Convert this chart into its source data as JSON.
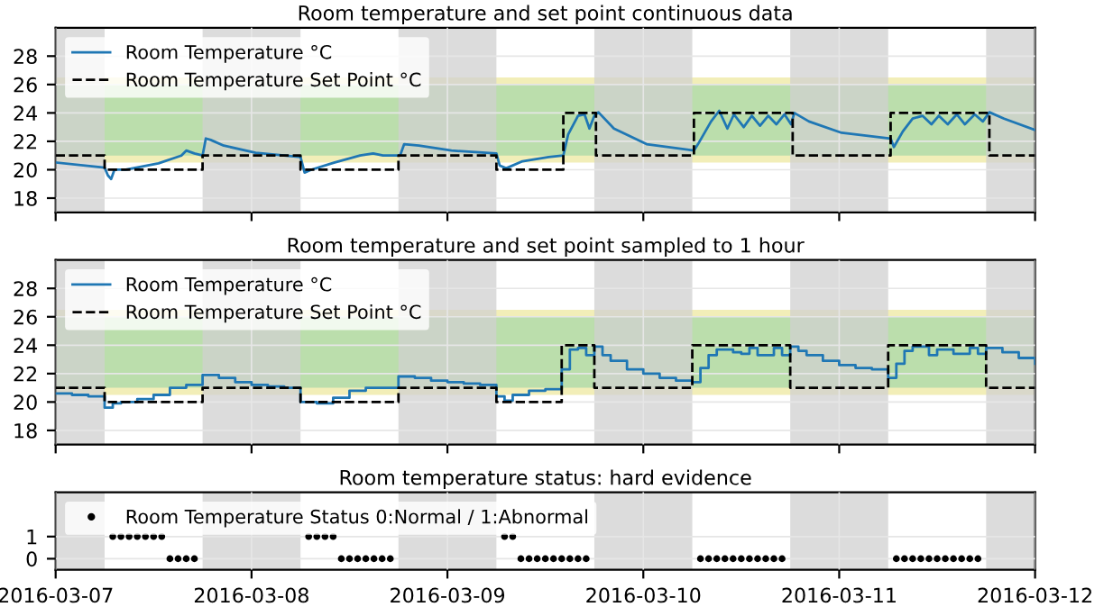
{
  "chart_data": [
    {
      "type": "line",
      "title": "Room temperature and set point continuous data",
      "tick_labels": "y",
      "grid": true,
      "legend": "top left",
      "xlim": [
        "2016-03-07",
        "2016-03-12"
      ],
      "xticks": [
        "2016-03-07",
        "2016-03-08",
        "2016-03-09",
        "2016-03-10",
        "2016-03-11",
        "2016-03-12"
      ],
      "ylim": [
        17,
        30
      ],
      "yticks": [
        18,
        20,
        22,
        24,
        26,
        28
      ],
      "bands": [
        {
          "axis": "y",
          "from": 20.5,
          "to": 26.5,
          "color": "#eee8a0"
        },
        {
          "axis": "y",
          "from": 21,
          "to": 26,
          "color": "#a8d8a8"
        },
        {
          "axis": "x",
          "from": "2016-03-07T00:00",
          "to": "2016-03-07T06:00",
          "color": "#d0d0d0"
        },
        {
          "axis": "x",
          "from": "2016-03-07T18:00",
          "to": "2016-03-08T06:00",
          "color": "#d0d0d0"
        },
        {
          "axis": "x",
          "from": "2016-03-08T18:00",
          "to": "2016-03-09T06:00",
          "color": "#d0d0d0"
        },
        {
          "axis": "x",
          "from": "2016-03-09T18:00",
          "to": "2016-03-10T06:00",
          "color": "#d0d0d0"
        },
        {
          "axis": "x",
          "from": "2016-03-10T18:00",
          "to": "2016-03-11T06:00",
          "color": "#d0d0d0"
        },
        {
          "axis": "x",
          "from": "2016-03-11T18:00",
          "to": "2016-03-12T00:00",
          "color": "#d0d0d0"
        }
      ],
      "series": [
        {
          "name": "Room Temperature °C",
          "type": "line",
          "color": "#1f77b4",
          "line_style": "solid",
          "x": [
            "2016-03-07T00:10",
            "2016-03-07T06:00",
            "2016-03-07T06:24",
            "2016-03-07T06:48",
            "2016-03-07T07:12",
            "2016-03-07T08:36",
            "2016-03-07T12:36",
            "2016-03-07T15:24",
            "2016-03-07T16:00",
            "2016-03-07T17:00",
            "2016-03-07T18:00",
            "2016-03-07T18:24",
            "2016-03-07T19:00",
            "2016-03-07T20:36",
            "2016-03-08T00:30",
            "2016-03-08T06:00",
            "2016-03-08T06:30",
            "2016-03-08T07:18",
            "2016-03-08T10:06",
            "2016-03-08T13:18",
            "2016-03-08T14:54",
            "2016-03-08T16:06",
            "2016-03-08T18:12",
            "2016-03-08T18:42",
            "2016-03-08T20:30",
            "2016-03-09T00:30",
            "2016-03-09T06:00",
            "2016-03-09T06:24",
            "2016-03-09T07:12",
            "2016-03-09T09:12",
            "2016-03-09T12:24",
            "2016-03-09T14:12",
            "2016-03-09T14:48",
            "2016-03-09T16:00",
            "2016-03-09T16:48",
            "2016-03-09T17:24",
            "2016-03-09T18:00",
            "2016-03-09T18:30",
            "2016-03-09T20:24",
            "2016-03-10T00:24",
            "2016-03-10T06:12",
            "2016-03-10T06:42",
            "2016-03-10T08:18",
            "2016-03-10T09:18",
            "2016-03-10T10:18",
            "2016-03-10T11:06",
            "2016-03-10T12:18",
            "2016-03-10T13:18",
            "2016-03-10T14:18",
            "2016-03-10T15:18",
            "2016-03-10T16:18",
            "2016-03-10T17:18",
            "2016-03-10T18:06",
            "2016-03-10T18:30",
            "2016-03-10T20:18",
            "2016-03-11T00:18",
            "2016-03-11T06:18",
            "2016-03-11T06:42",
            "2016-03-11T07:48",
            "2016-03-11T09:00",
            "2016-03-11T10:12",
            "2016-03-11T11:18",
            "2016-03-11T12:12",
            "2016-03-11T13:18",
            "2016-03-11T14:24",
            "2016-03-11T15:24",
            "2016-03-11T16:36",
            "2016-03-11T17:36",
            "2016-03-11T18:24",
            "2016-03-11T20:12",
            "2016-03-12T00:00"
          ],
          "values": [
            20.5,
            20.15,
            19.6,
            19.35,
            20.0,
            20.0,
            20.45,
            21.0,
            21.35,
            21.15,
            21.0,
            22.2,
            22.1,
            21.7,
            21.2,
            20.9,
            19.8,
            20.0,
            20.5,
            21.0,
            21.15,
            21.0,
            21.0,
            21.8,
            21.7,
            21.35,
            21.15,
            20.3,
            20.1,
            20.6,
            20.9,
            21.0,
            22.5,
            23.8,
            23.9,
            22.9,
            23.8,
            24.05,
            22.9,
            21.8,
            21.35,
            21.8,
            23.4,
            24.15,
            22.9,
            23.9,
            23.0,
            23.8,
            23.1,
            23.8,
            23.2,
            23.9,
            23.2,
            24.0,
            23.4,
            22.6,
            22.2,
            21.6,
            22.7,
            23.6,
            23.8,
            23.2,
            23.8,
            23.2,
            23.9,
            23.2,
            23.9,
            23.4,
            24.05,
            23.6,
            22.8
          ]
        },
        {
          "name": "Room Temperature Set Point °C",
          "type": "step",
          "color": "#000000",
          "line_style": "dashed",
          "x": [
            "2016-03-07T00:00",
            "2016-03-07T06:00",
            "2016-03-07T18:00",
            "2016-03-08T06:00",
            "2016-03-08T18:00",
            "2016-03-09T06:00",
            "2016-03-09T14:12",
            "2016-03-09T18:12",
            "2016-03-10T06:12",
            "2016-03-10T18:18",
            "2016-03-11T06:18",
            "2016-03-11T18:24",
            "2016-03-12T00:00"
          ],
          "values": [
            21,
            20,
            21,
            20,
            21,
            20,
            24,
            21,
            24,
            21,
            24,
            21,
            21
          ]
        }
      ]
    },
    {
      "type": "line",
      "title": "Room temperature and set point sampled to 1 hour",
      "tick_labels": "y",
      "grid": true,
      "legend": "top left",
      "xlim": [
        "2016-03-07",
        "2016-03-12"
      ],
      "xticks": [
        "2016-03-07",
        "2016-03-08",
        "2016-03-09",
        "2016-03-10",
        "2016-03-11",
        "2016-03-12"
      ],
      "ylim": [
        17,
        30
      ],
      "yticks": [
        18,
        20,
        22,
        24,
        26,
        28
      ],
      "bands": [
        {
          "axis": "y",
          "from": 20.5,
          "to": 26.5,
          "color": "#eee8a0"
        },
        {
          "axis": "y",
          "from": 21,
          "to": 26,
          "color": "#a8d8a8"
        },
        {
          "axis": "x",
          "from": "2016-03-07T00:00",
          "to": "2016-03-07T06:00",
          "color": "#d0d0d0"
        },
        {
          "axis": "x",
          "from": "2016-03-07T18:00",
          "to": "2016-03-08T06:00",
          "color": "#d0d0d0"
        },
        {
          "axis": "x",
          "from": "2016-03-08T18:00",
          "to": "2016-03-09T06:00",
          "color": "#d0d0d0"
        },
        {
          "axis": "x",
          "from": "2016-03-09T18:00",
          "to": "2016-03-10T06:00",
          "color": "#d0d0d0"
        },
        {
          "axis": "x",
          "from": "2016-03-10T18:00",
          "to": "2016-03-11T06:00",
          "color": "#d0d0d0"
        },
        {
          "axis": "x",
          "from": "2016-03-11T18:00",
          "to": "2016-03-12T00:00",
          "color": "#d0d0d0"
        }
      ],
      "series": [
        {
          "name": "Room Temperature °C",
          "type": "step",
          "color": "#1f77b4",
          "line_style": "solid",
          "x": [
            "2016-03-07T00:00",
            "2016-03-07T02:00",
            "2016-03-07T04:00",
            "2016-03-07T06:00",
            "2016-03-07T07:00",
            "2016-03-07T08:00",
            "2016-03-07T10:00",
            "2016-03-07T12:00",
            "2016-03-07T14:00",
            "2016-03-07T16:00",
            "2016-03-07T18:00",
            "2016-03-07T20:00",
            "2016-03-07T22:00",
            "2016-03-08T00:00",
            "2016-03-08T02:00",
            "2016-03-08T04:00",
            "2016-03-08T06:00",
            "2016-03-08T08:00",
            "2016-03-08T10:00",
            "2016-03-08T12:00",
            "2016-03-08T14:00",
            "2016-03-08T16:00",
            "2016-03-08T18:00",
            "2016-03-08T20:00",
            "2016-03-08T22:00",
            "2016-03-09T00:00",
            "2016-03-09T02:00",
            "2016-03-09T04:00",
            "2016-03-09T06:00",
            "2016-03-09T07:00",
            "2016-03-09T08:00",
            "2016-03-09T10:00",
            "2016-03-09T12:00",
            "2016-03-09T14:00",
            "2016-03-09T15:00",
            "2016-03-09T16:00",
            "2016-03-09T17:00",
            "2016-03-09T18:00",
            "2016-03-09T19:00",
            "2016-03-09T20:00",
            "2016-03-09T22:00",
            "2016-03-10T00:00",
            "2016-03-10T02:00",
            "2016-03-10T04:00",
            "2016-03-10T06:00",
            "2016-03-10T07:00",
            "2016-03-10T08:00",
            "2016-03-10T09:00",
            "2016-03-10T11:00",
            "2016-03-10T12:00",
            "2016-03-10T13:00",
            "2016-03-10T14:00",
            "2016-03-10T16:00",
            "2016-03-10T17:00",
            "2016-03-10T18:00",
            "2016-03-10T19:00",
            "2016-03-10T20:00",
            "2016-03-10T22:00",
            "2016-03-11T00:00",
            "2016-03-11T02:00",
            "2016-03-11T04:00",
            "2016-03-11T06:00",
            "2016-03-11T07:00",
            "2016-03-11T08:00",
            "2016-03-11T09:00",
            "2016-03-11T11:00",
            "2016-03-11T12:00",
            "2016-03-11T14:00",
            "2016-03-11T16:00",
            "2016-03-11T17:00",
            "2016-03-11T18:00",
            "2016-03-11T20:00",
            "2016-03-11T22:00",
            "2016-03-12T00:00"
          ],
          "values": [
            20.6,
            20.5,
            20.4,
            19.6,
            19.9,
            20.0,
            20.2,
            20.5,
            21.0,
            21.2,
            21.9,
            21.7,
            21.4,
            21.2,
            21.1,
            21.0,
            20.0,
            19.9,
            20.3,
            20.8,
            21.0,
            21.0,
            21.8,
            21.7,
            21.5,
            21.4,
            21.3,
            21.2,
            20.4,
            20.1,
            20.5,
            20.8,
            20.9,
            22.3,
            23.7,
            23.8,
            23.3,
            23.9,
            23.3,
            22.9,
            22.3,
            22.0,
            21.7,
            21.5,
            21.4,
            22.4,
            23.3,
            23.7,
            23.5,
            23.4,
            23.8,
            23.3,
            23.8,
            23.3,
            23.9,
            23.6,
            23.3,
            22.9,
            22.6,
            22.4,
            22.3,
            21.7,
            22.7,
            23.6,
            23.9,
            23.3,
            23.7,
            23.4,
            23.8,
            23.4,
            23.8,
            23.5,
            23.1,
            22.7
          ]
        },
        {
          "name": "Room Temperature Set Point °C",
          "type": "step",
          "color": "#000000",
          "line_style": "dashed",
          "x": [
            "2016-03-07T00:00",
            "2016-03-07T06:00",
            "2016-03-07T18:00",
            "2016-03-08T06:00",
            "2016-03-08T18:00",
            "2016-03-09T06:00",
            "2016-03-09T14:00",
            "2016-03-09T18:00",
            "2016-03-10T06:00",
            "2016-03-10T18:00",
            "2016-03-11T06:00",
            "2016-03-11T18:00",
            "2016-03-12T00:00"
          ],
          "values": [
            21,
            20,
            21,
            20,
            21,
            20,
            24,
            21,
            24,
            21,
            24,
            21,
            21
          ]
        }
      ]
    },
    {
      "type": "scatter",
      "title": "Room temperature status: hard evidence",
      "grid": true,
      "legend": "top left",
      "marker": "circle",
      "xlim": [
        "2016-03-07",
        "2016-03-12"
      ],
      "xticks": [
        "2016-03-07",
        "2016-03-08",
        "2016-03-09",
        "2016-03-10",
        "2016-03-11",
        "2016-03-12"
      ],
      "ylim": [
        -0.5,
        3
      ],
      "yticks": [
        0,
        1
      ],
      "bands": [
        {
          "axis": "x",
          "from": "2016-03-07T00:00",
          "to": "2016-03-07T06:00",
          "color": "#d0d0d0"
        },
        {
          "axis": "x",
          "from": "2016-03-07T18:00",
          "to": "2016-03-08T06:00",
          "color": "#d0d0d0"
        },
        {
          "axis": "x",
          "from": "2016-03-08T18:00",
          "to": "2016-03-09T06:00",
          "color": "#d0d0d0"
        },
        {
          "axis": "x",
          "from": "2016-03-09T18:00",
          "to": "2016-03-10T06:00",
          "color": "#d0d0d0"
        },
        {
          "axis": "x",
          "from": "2016-03-10T18:00",
          "to": "2016-03-11T06:00",
          "color": "#d0d0d0"
        },
        {
          "axis": "x",
          "from": "2016-03-11T18:00",
          "to": "2016-03-12T00:00",
          "color": "#d0d0d0"
        }
      ],
      "series": [
        {
          "name": "Room Temperature Status 0:Normal / 1:Abnormal",
          "type": "scatter",
          "color": "#000000",
          "x": [
            "2016-03-07T07:00",
            "2016-03-07T08:00",
            "2016-03-07T09:00",
            "2016-03-07T10:00",
            "2016-03-07T11:00",
            "2016-03-07T12:00",
            "2016-03-07T13:00",
            "2016-03-07T14:00",
            "2016-03-07T15:00",
            "2016-03-07T16:00",
            "2016-03-07T17:00",
            "2016-03-08T07:00",
            "2016-03-08T08:00",
            "2016-03-08T09:00",
            "2016-03-08T10:00",
            "2016-03-08T11:00",
            "2016-03-08T12:00",
            "2016-03-08T13:00",
            "2016-03-08T14:00",
            "2016-03-08T15:00",
            "2016-03-08T16:00",
            "2016-03-08T17:00",
            "2016-03-09T07:00",
            "2016-03-09T08:00",
            "2016-03-09T09:00",
            "2016-03-09T10:00",
            "2016-03-09T11:00",
            "2016-03-09T12:00",
            "2016-03-09T13:00",
            "2016-03-09T14:00",
            "2016-03-09T15:00",
            "2016-03-09T16:00",
            "2016-03-09T17:00",
            "2016-03-10T07:00",
            "2016-03-10T08:00",
            "2016-03-10T09:00",
            "2016-03-10T10:00",
            "2016-03-10T11:00",
            "2016-03-10T12:00",
            "2016-03-10T13:00",
            "2016-03-10T14:00",
            "2016-03-10T15:00",
            "2016-03-10T16:00",
            "2016-03-10T17:00",
            "2016-03-11T07:00",
            "2016-03-11T08:00",
            "2016-03-11T09:00",
            "2016-03-11T10:00",
            "2016-03-11T11:00",
            "2016-03-11T12:00",
            "2016-03-11T13:00",
            "2016-03-11T14:00",
            "2016-03-11T15:00",
            "2016-03-11T16:00",
            "2016-03-11T17:00"
          ],
          "values": [
            1,
            1,
            1,
            1,
            1,
            1,
            1,
            0,
            0,
            0,
            0,
            1,
            1,
            1,
            1,
            0,
            0,
            0,
            0,
            0,
            0,
            0,
            1,
            1,
            0,
            0,
            0,
            0,
            0,
            0,
            0,
            0,
            0,
            0,
            0,
            0,
            0,
            0,
            0,
            0,
            0,
            0,
            0,
            0,
            0,
            0,
            0,
            0,
            0,
            0,
            0,
            0,
            0,
            0,
            0
          ]
        }
      ]
    }
  ]
}
